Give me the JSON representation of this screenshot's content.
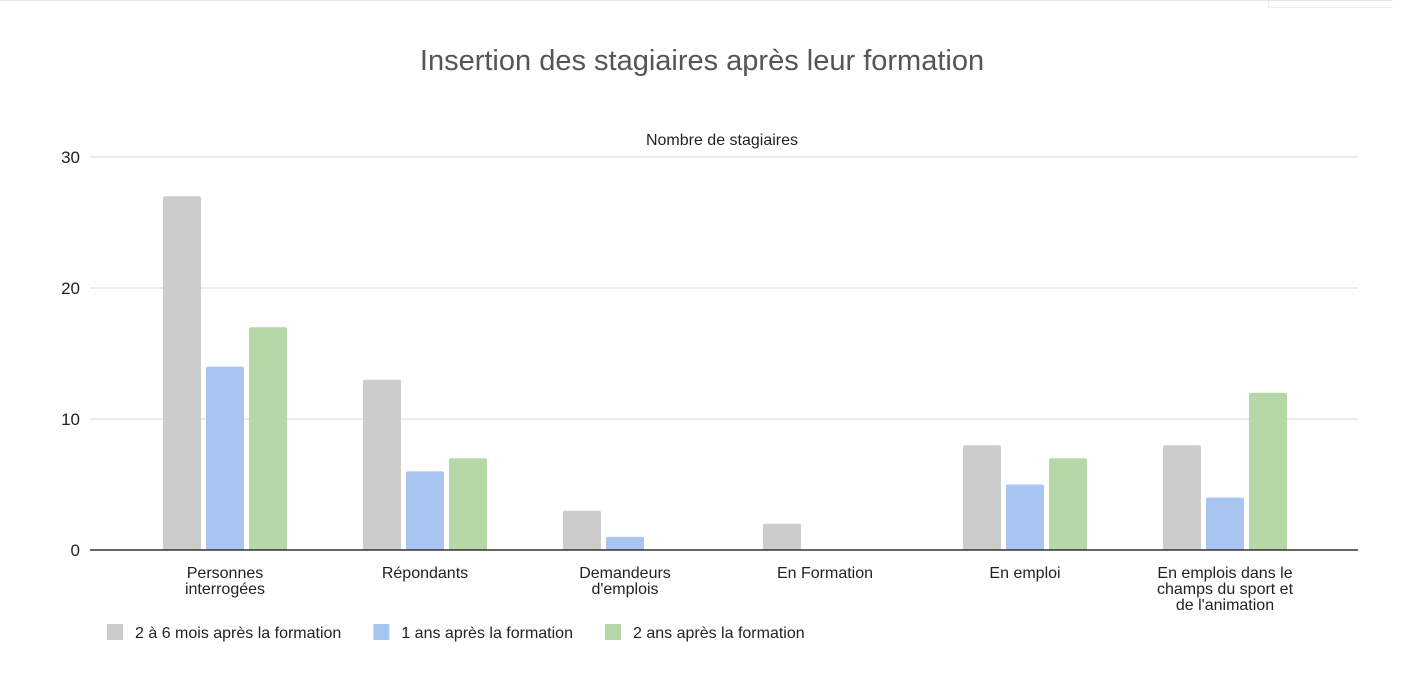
{
  "chart_data": {
    "type": "bar",
    "title": "Insertion des stagiaires après leur formation",
    "ylabel": "Nombre de stagiaires",
    "xlabel": "",
    "ylim": [
      0,
      30
    ],
    "yticks": [
      0,
      10,
      20,
      30
    ],
    "grid": true,
    "legend_position": "bottom-left",
    "categories": [
      [
        "Personnes",
        "interrogées"
      ],
      [
        "Répondants"
      ],
      [
        "Demandeurs",
        "d'emplois"
      ],
      [
        "En Formation"
      ],
      [
        "En emploi"
      ],
      [
        "En emplois dans le",
        "champs du sport et",
        "de l'animation"
      ]
    ],
    "series": [
      {
        "name": "2 à 6 mois après la formation",
        "color": "#cccccc",
        "values": [
          27,
          13,
          3,
          2,
          8,
          8
        ]
      },
      {
        "name": "1 ans après la formation",
        "color": "#a8c4f0",
        "values": [
          14,
          6,
          1,
          0,
          5,
          4
        ]
      },
      {
        "name": "2 ans après la formation",
        "color": "#b6d7a8",
        "values": [
          17,
          7,
          0,
          0,
          7,
          12
        ]
      }
    ],
    "colors": {
      "title": "#555555",
      "axis_text": "#222222",
      "grid": "#d9d9d9",
      "baseline": "#333333"
    }
  }
}
